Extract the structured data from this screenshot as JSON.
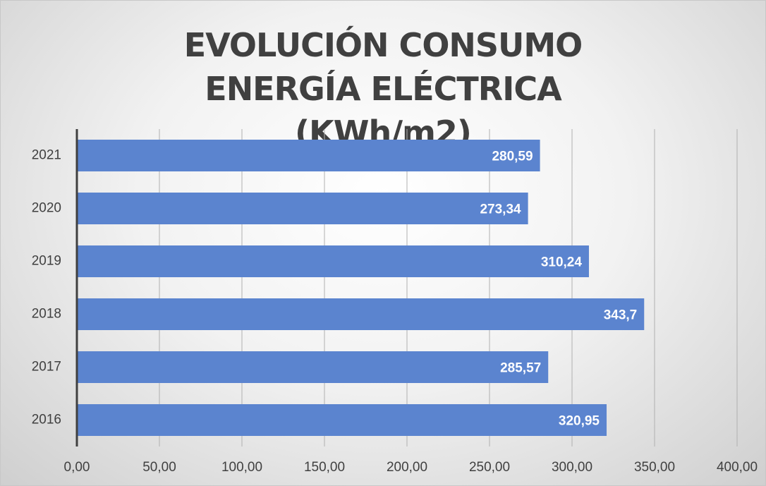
{
  "chart_data": {
    "type": "hbar",
    "title": "EVOLUCIÓN CONSUMO ENERGÍA ELÉCTRICA (KWh/m2)",
    "categories": [
      "2021",
      "2020",
      "2019",
      "2018",
      "2017",
      "2016"
    ],
    "values": [
      280.59,
      273.34,
      310.24,
      343.7,
      285.57,
      320.95
    ],
    "value_labels": [
      "280,59",
      "273,34",
      "310,24",
      "343,7",
      "285,57",
      "320,95"
    ],
    "color": "#5b84cf",
    "xlim": [
      0,
      400
    ],
    "xticks": [
      {
        "value": 0,
        "label": "0,00"
      },
      {
        "value": 50,
        "label": "50,00"
      },
      {
        "value": 100,
        "label": "100,00"
      },
      {
        "value": 150,
        "label": "150,00"
      },
      {
        "value": 200,
        "label": "200,00"
      },
      {
        "value": 250,
        "label": "250,00"
      },
      {
        "value": 300,
        "label": "300,00"
      },
      {
        "value": 350,
        "label": "350,00"
      },
      {
        "value": 400,
        "label": "400,00"
      }
    ],
    "grid": true
  }
}
